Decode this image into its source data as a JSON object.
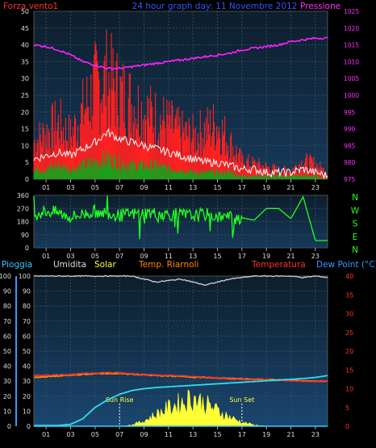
{
  "colors": {
    "wind": "#ff2020",
    "gust_white": "#ffffff",
    "avg_green": "#1aa01a",
    "pressure": "#ff20ff",
    "direction": "#22ff22",
    "rain": "#33ccff",
    "humidity": "#c8c8c8",
    "solar": "#ffff33",
    "temp": "#ff3030",
    "temp2": "#ff8800",
    "dew": "#33ddee",
    "axis_blue": "#3399ff"
  },
  "chart_data": [
    {
      "type": "line",
      "title": "24 hour graph day: 11 Novembre 2012",
      "left_label": "Forza vento1",
      "right_label": "Pressione",
      "x_ticks": [
        "01",
        "03",
        "05",
        "07",
        "09",
        "11",
        "13",
        "15",
        "17",
        "19",
        "21",
        "23"
      ],
      "ylim_left": [
        0,
        50
      ],
      "y_ticks_left": [
        "0",
        "5",
        "10",
        "15",
        "20",
        "25",
        "30",
        "35",
        "40",
        "45",
        "50"
      ],
      "ylim_right": [
        975,
        1025
      ],
      "y_ticks_right": [
        "975",
        "980",
        "985",
        "990",
        "995",
        "1000",
        "1005",
        "1010",
        "1015",
        "1020",
        "1025"
      ],
      "x": [
        0,
        1,
        2,
        3,
        4,
        5,
        6,
        7,
        8,
        9,
        10,
        11,
        12,
        13,
        14,
        15,
        16,
        17,
        18,
        19,
        20,
        21,
        22,
        23,
        24
      ],
      "series": [
        {
          "name": "Pressione",
          "axis": "right",
          "values": [
            1015,
            1014.5,
            1013.5,
            1012,
            1010,
            1009,
            1008,
            1008,
            1008.5,
            1009,
            1009.5,
            1010,
            1010.5,
            1011,
            1011.5,
            1012,
            1012.5,
            1013.5,
            1014,
            1014.5,
            1015,
            1016,
            1016.5,
            1017,
            1017
          ]
        },
        {
          "axis": "left",
          "values": [
            12,
            15,
            18,
            14,
            22,
            30,
            33,
            28,
            25,
            22,
            20,
            18,
            15,
            14,
            16,
            18,
            12,
            6,
            5,
            4,
            3,
            3,
            6,
            5,
            2
          ]
        },
        {
          "axis": "left",
          "values": [
            6,
            7,
            8,
            7,
            9,
            11,
            14,
            12,
            11,
            10,
            9,
            8,
            7,
            6,
            5,
            5,
            4,
            3,
            3,
            2,
            2,
            2,
            3,
            2,
            1
          ]
        },
        {
          "axis": "left",
          "values": [
            3,
            3,
            4,
            3,
            4,
            5,
            6,
            5,
            4,
            4,
            4,
            3,
            3,
            2,
            2,
            2,
            2,
            1,
            1,
            1,
            1,
            1,
            1,
            1,
            0
          ]
        }
      ]
    },
    {
      "type": "line",
      "x_ticks": [
        "01",
        "03",
        "05",
        "07",
        "09",
        "11",
        "13",
        "15",
        "17",
        "19",
        "21",
        "23"
      ],
      "ylim": [
        0,
        360
      ],
      "y_ticks": [
        "0",
        "90",
        "180",
        "270",
        "360"
      ],
      "compass": [
        "N",
        "W",
        "S",
        "E",
        "N"
      ],
      "x": [
        0,
        1,
        2,
        3,
        4,
        5,
        6,
        7,
        8,
        9,
        10,
        11,
        12,
        13,
        14,
        15,
        16,
        17,
        18,
        19,
        20,
        21,
        22,
        23,
        24
      ],
      "series": [
        {
          "values": [
            230,
            250,
            240,
            210,
            230,
            250,
            240,
            220,
            230,
            240,
            235,
            230,
            225,
            220,
            230,
            215,
            210,
            205,
            190,
            270,
            270,
            200,
            350,
            50,
            50
          ]
        }
      ]
    },
    {
      "type": "line",
      "legend": [
        "Pioggia",
        "Umidita",
        "Solar",
        "Temp. Riarnoli",
        "Temperatura",
        "Dew Point (°C)"
      ],
      "x_ticks": [
        "01",
        "03",
        "05",
        "07",
        "09",
        "11",
        "13",
        "15",
        "17",
        "19",
        "21",
        "23"
      ],
      "ylim_left": [
        0,
        100
      ],
      "y_ticks_left": [
        "0",
        "10",
        "20",
        "30",
        "40",
        "50",
        "60",
        "70",
        "80",
        "90",
        "100"
      ],
      "ylim_right": [
        0,
        40
      ],
      "y_ticks_right": [
        "0",
        "5",
        "10",
        "15",
        "20",
        "25",
        "30",
        "35",
        "40"
      ],
      "annotations": [
        {
          "text": "Sun Rise",
          "x": 7
        },
        {
          "text": "Sun Set",
          "x": 17
        }
      ],
      "x": [
        0,
        1,
        2,
        3,
        4,
        5,
        6,
        7,
        8,
        9,
        10,
        11,
        12,
        13,
        14,
        15,
        16,
        17,
        18,
        19,
        20,
        21,
        22,
        23,
        24
      ],
      "series": [
        {
          "name": "Umidita",
          "axis": "left",
          "values": [
            100,
            100,
            100,
            100,
            100,
            100,
            100,
            100,
            100,
            98,
            96,
            97,
            98,
            96,
            94,
            96,
            98,
            99,
            100,
            100,
            100,
            100,
            99,
            100,
            99
          ]
        },
        {
          "name": "Temperatura",
          "axis": "right",
          "values": [
            13.5,
            13.6,
            13.7,
            13.8,
            14,
            14.2,
            14.3,
            14.2,
            14,
            13.8,
            13.6,
            13.5,
            13.4,
            13.2,
            13,
            12.8,
            12.6,
            12.5,
            12.4,
            12.3,
            12.2,
            12.1,
            12,
            12,
            12
          ]
        },
        {
          "name": "Temp. Riarnoli",
          "axis": "right",
          "values": [
            13,
            13.2,
            13.4,
            13.6,
            13.8,
            14,
            14.1,
            14,
            13.9,
            13.7,
            13.5,
            13.4,
            13.3,
            13.1,
            13,
            12.8,
            12.7,
            12.6,
            12.5,
            12.4,
            12.3,
            12.2,
            12.1,
            12,
            12
          ]
        },
        {
          "name": "Dew Point (°C)",
          "axis": "right",
          "values": [
            0.2,
            0.2,
            0.2,
            0.5,
            2,
            5,
            7,
            8.5,
            9.5,
            10,
            10.3,
            10.5,
            10.7,
            10.9,
            11.1,
            11.3,
            11.5,
            11.7,
            11.9,
            12.1,
            12.3,
            12.5,
            12.7,
            13,
            13.5
          ]
        },
        {
          "name": "Pioggia",
          "axis": "left",
          "values": [
            0,
            0,
            0,
            0,
            0,
            0,
            0,
            0,
            0,
            0,
            0,
            0,
            0,
            0,
            0,
            0,
            0,
            0,
            0,
            0,
            0,
            0,
            0,
            0,
            0
          ]
        },
        {
          "name": "Solar",
          "axis": "left",
          "values": [
            0,
            0,
            0,
            0,
            0,
            0,
            0,
            0,
            1,
            4,
            9,
            14,
            18,
            22,
            17,
            12,
            7,
            3,
            1,
            0,
            0,
            0,
            0,
            0,
            0
          ]
        }
      ]
    }
  ]
}
